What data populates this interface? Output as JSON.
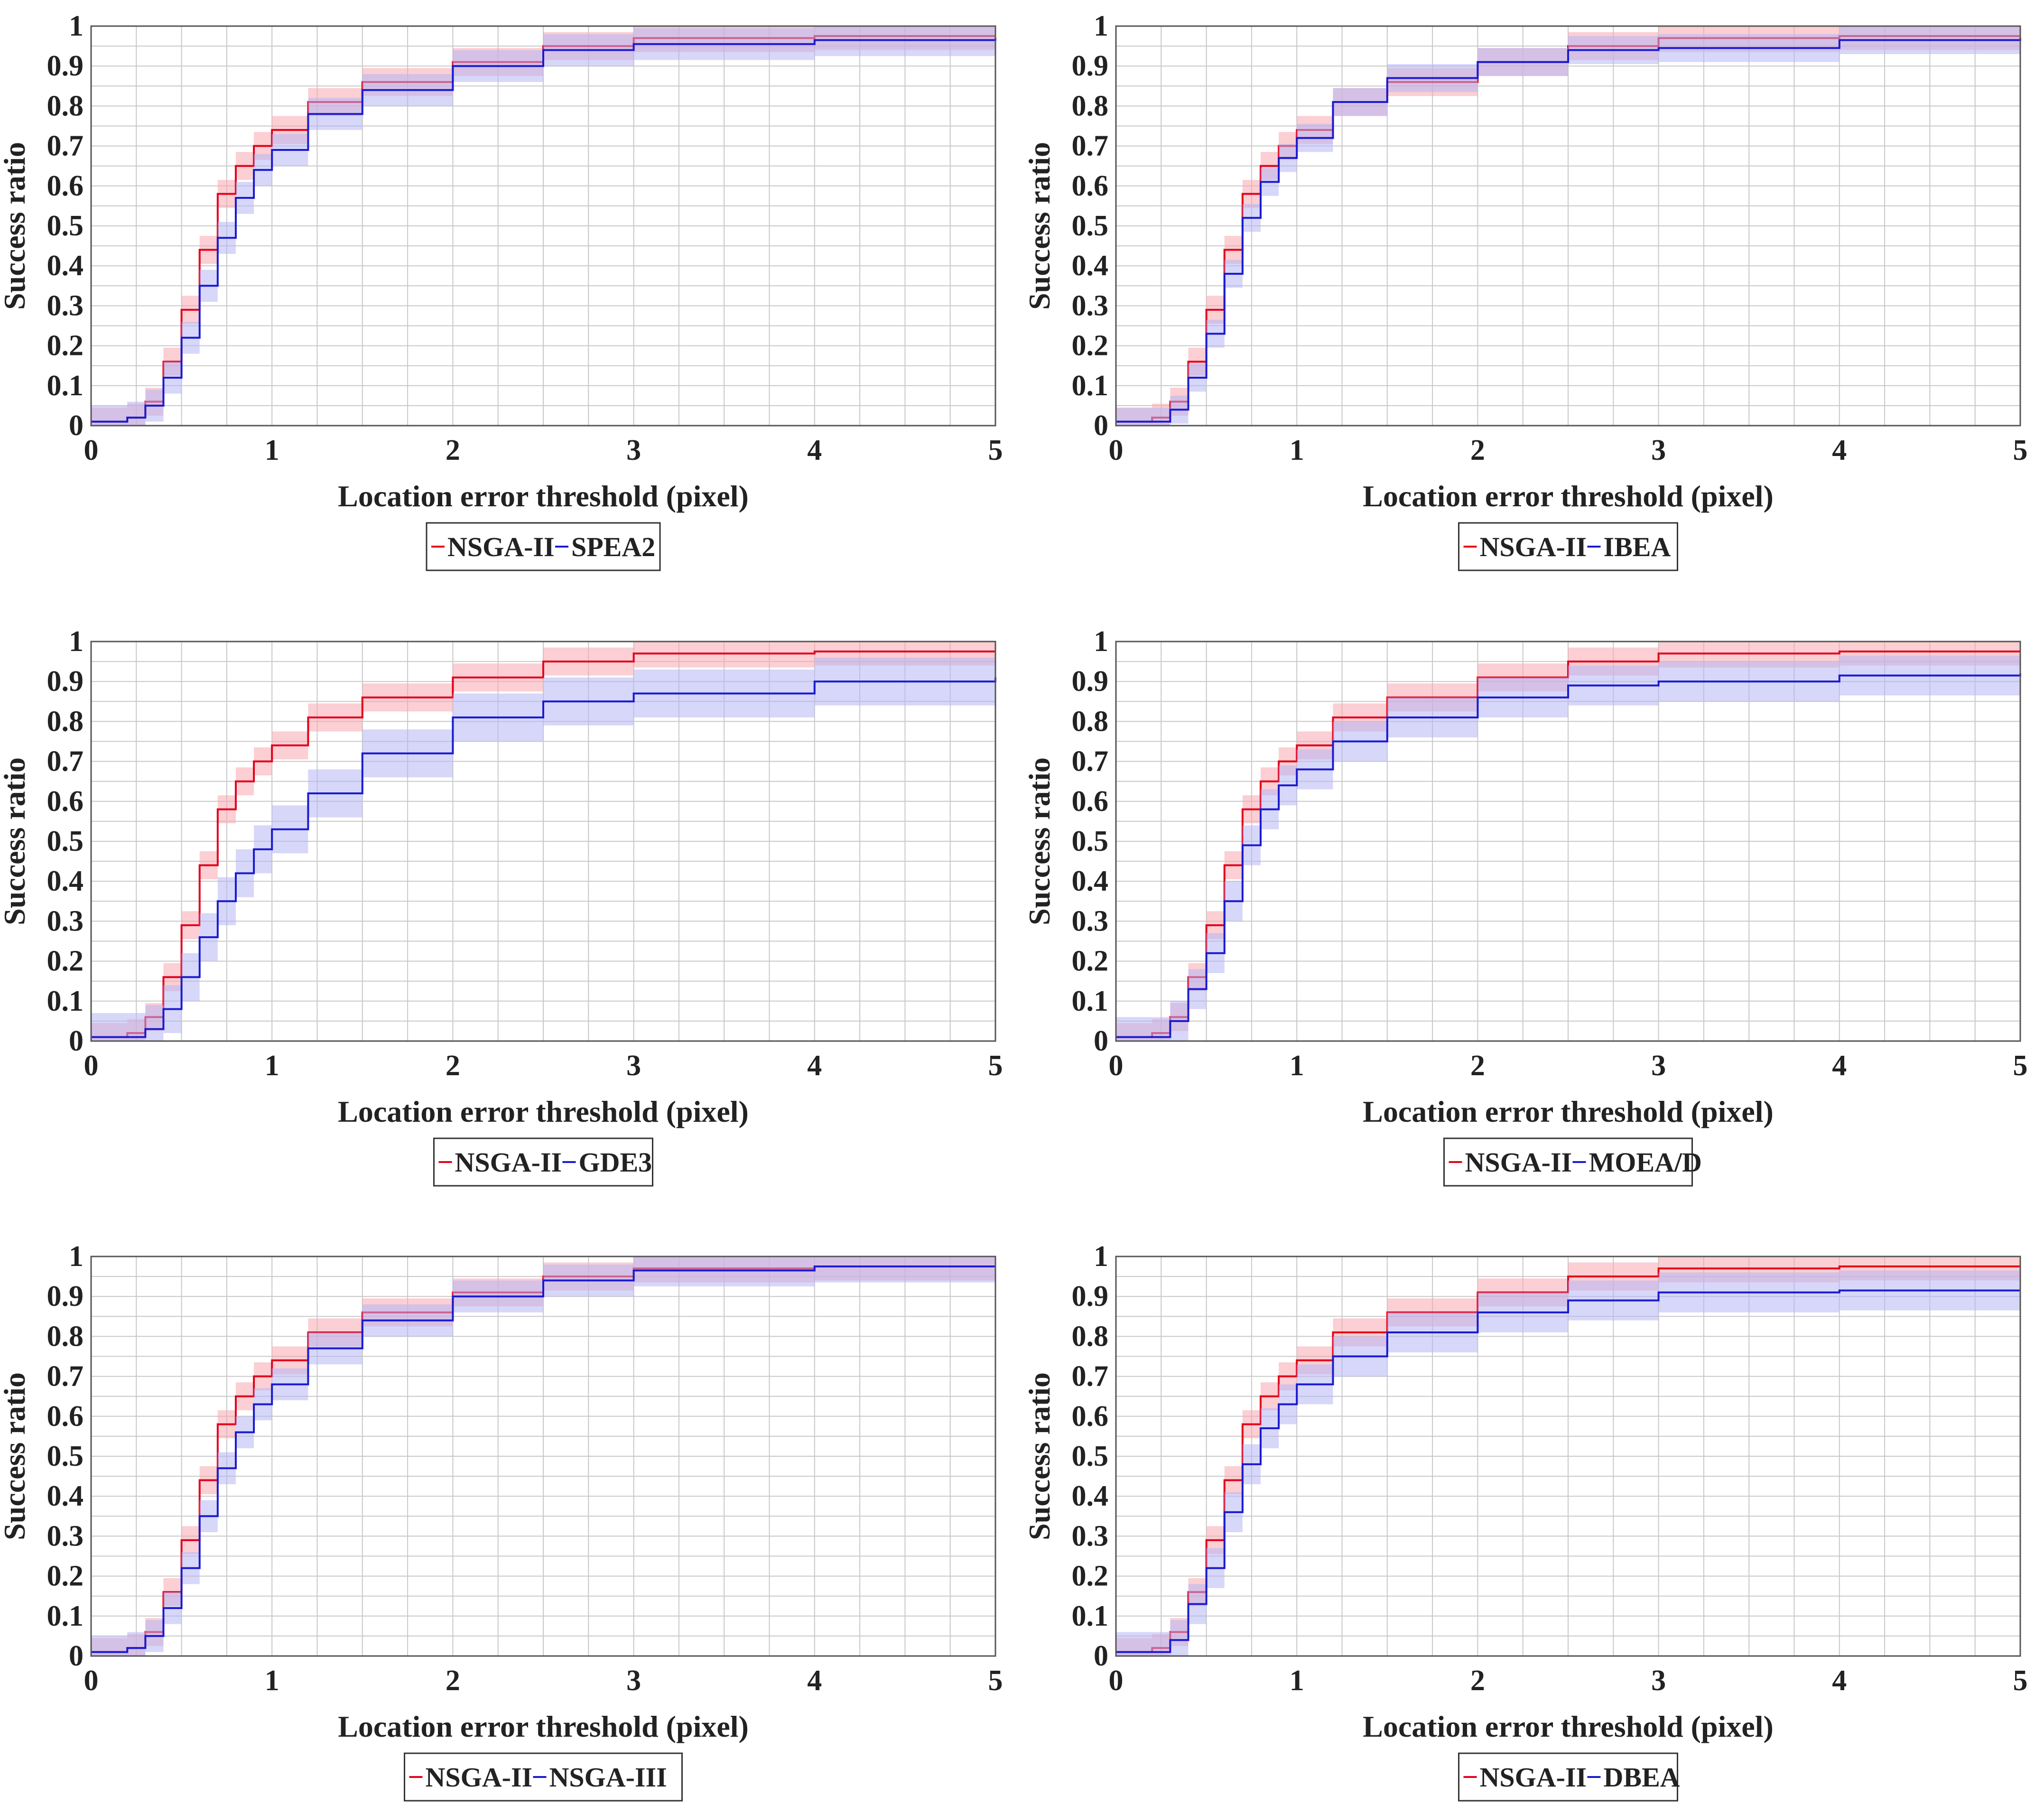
{
  "figure": {
    "colors": {
      "nsga2": "#e3001b",
      "other": "#1a1ad0",
      "nsga2_band": "#f7a8ae",
      "other_band": "#b6b6f5",
      "grid": "#c8c8c8",
      "axis": "#555555"
    }
  },
  "chart_data": [
    {
      "type": "line",
      "title": "",
      "xlabel": "Location error threshold (pixel)",
      "ylabel": "Success ratio",
      "xlim": [
        0,
        5
      ],
      "ylim": [
        0,
        1
      ],
      "xticks": [
        "0",
        "1",
        "2",
        "3",
        "4",
        "5"
      ],
      "yticks": [
        "0",
        "0.1",
        "0.2",
        "0.3",
        "0.4",
        "0.5",
        "0.6",
        "0.7",
        "0.8",
        "0.9",
        "1"
      ],
      "grid": true,
      "legend_position": "bottom-center",
      "x": [
        0,
        0.2,
        0.3,
        0.4,
        0.5,
        0.6,
        0.7,
        0.8,
        0.9,
        1.0,
        1.2,
        1.5,
        2.0,
        2.5,
        3.0,
        4.0,
        5.0
      ],
      "series": [
        {
          "name": "NSGA-II",
          "values": [
            0.01,
            0.02,
            0.06,
            0.16,
            0.29,
            0.44,
            0.58,
            0.65,
            0.7,
            0.74,
            0.81,
            0.86,
            0.91,
            0.95,
            0.97,
            0.975,
            0.975
          ],
          "band": 0.035
        },
        {
          "name": "SPEA2",
          "values": [
            0.01,
            0.02,
            0.05,
            0.12,
            0.22,
            0.35,
            0.47,
            0.57,
            0.64,
            0.69,
            0.78,
            0.84,
            0.9,
            0.94,
            0.955,
            0.965,
            0.97
          ],
          "band": 0.04
        }
      ]
    },
    {
      "type": "line",
      "title": "",
      "xlabel": "Location error threshold (pixel)",
      "ylabel": "Success ratio",
      "xlim": [
        0,
        5
      ],
      "ylim": [
        0,
        1
      ],
      "xticks": [
        "0",
        "1",
        "2",
        "3",
        "4",
        "5"
      ],
      "yticks": [
        "0",
        "0.1",
        "0.2",
        "0.3",
        "0.4",
        "0.5",
        "0.6",
        "0.7",
        "0.8",
        "0.9",
        "1"
      ],
      "grid": true,
      "legend_position": "bottom-center",
      "x": [
        0,
        0.2,
        0.3,
        0.4,
        0.5,
        0.6,
        0.7,
        0.8,
        0.9,
        1.0,
        1.2,
        1.5,
        2.0,
        2.5,
        3.0,
        4.0,
        5.0
      ],
      "series": [
        {
          "name": "NSGA-II",
          "values": [
            0.01,
            0.02,
            0.06,
            0.16,
            0.29,
            0.44,
            0.58,
            0.65,
            0.7,
            0.74,
            0.81,
            0.86,
            0.91,
            0.95,
            0.97,
            0.975,
            0.975
          ],
          "band": 0.035
        },
        {
          "name": "IBEA",
          "values": [
            0.01,
            0.01,
            0.04,
            0.12,
            0.23,
            0.38,
            0.52,
            0.61,
            0.67,
            0.72,
            0.81,
            0.87,
            0.91,
            0.94,
            0.945,
            0.965,
            0.97
          ],
          "band": 0.035
        }
      ]
    },
    {
      "type": "line",
      "title": "",
      "xlabel": "Location error threshold (pixel)",
      "ylabel": "Success ratio",
      "xlim": [
        0,
        5
      ],
      "ylim": [
        0,
        1
      ],
      "xticks": [
        "0",
        "1",
        "2",
        "3",
        "4",
        "5"
      ],
      "yticks": [
        "0",
        "0.1",
        "0.2",
        "0.3",
        "0.4",
        "0.5",
        "0.6",
        "0.7",
        "0.8",
        "0.9",
        "1"
      ],
      "grid": true,
      "legend_position": "bottom-center",
      "x": [
        0,
        0.2,
        0.3,
        0.4,
        0.5,
        0.6,
        0.7,
        0.8,
        0.9,
        1.0,
        1.2,
        1.5,
        2.0,
        2.5,
        3.0,
        4.0,
        5.0
      ],
      "series": [
        {
          "name": "NSGA-II",
          "values": [
            0.01,
            0.02,
            0.06,
            0.16,
            0.29,
            0.44,
            0.58,
            0.65,
            0.7,
            0.74,
            0.81,
            0.86,
            0.91,
            0.95,
            0.97,
            0.975,
            0.975
          ],
          "band": 0.035
        },
        {
          "name": "GDE3",
          "values": [
            0.01,
            0.01,
            0.03,
            0.08,
            0.16,
            0.26,
            0.35,
            0.42,
            0.48,
            0.53,
            0.62,
            0.72,
            0.81,
            0.85,
            0.87,
            0.9,
            0.91
          ],
          "band": 0.06
        }
      ]
    },
    {
      "type": "line",
      "title": "",
      "xlabel": "Location error threshold (pixel)",
      "ylabel": "Success ratio",
      "xlim": [
        0,
        5
      ],
      "ylim": [
        0,
        1
      ],
      "xticks": [
        "0",
        "1",
        "2",
        "3",
        "4",
        "5"
      ],
      "yticks": [
        "0",
        "0.1",
        "0.2",
        "0.3",
        "0.4",
        "0.5",
        "0.6",
        "0.7",
        "0.8",
        "0.9",
        "1"
      ],
      "grid": true,
      "legend_position": "bottom-center",
      "x": [
        0,
        0.2,
        0.3,
        0.4,
        0.5,
        0.6,
        0.7,
        0.8,
        0.9,
        1.0,
        1.2,
        1.5,
        2.0,
        2.5,
        3.0,
        4.0,
        5.0
      ],
      "series": [
        {
          "name": "NSGA-II",
          "values": [
            0.01,
            0.02,
            0.06,
            0.16,
            0.29,
            0.44,
            0.58,
            0.65,
            0.7,
            0.74,
            0.81,
            0.86,
            0.91,
            0.95,
            0.97,
            0.975,
            0.975
          ],
          "band": 0.035
        },
        {
          "name": "MOEA/D",
          "values": [
            0.01,
            0.01,
            0.05,
            0.13,
            0.22,
            0.35,
            0.49,
            0.58,
            0.64,
            0.68,
            0.75,
            0.81,
            0.86,
            0.89,
            0.9,
            0.915,
            0.92
          ],
          "band": 0.05
        }
      ]
    },
    {
      "type": "line",
      "title": "",
      "xlabel": "Location error threshold (pixel)",
      "ylabel": "Success ratio",
      "xlim": [
        0,
        5
      ],
      "ylim": [
        0,
        1
      ],
      "xticks": [
        "0",
        "1",
        "2",
        "3",
        "4",
        "5"
      ],
      "yticks": [
        "0",
        "0.1",
        "0.2",
        "0.3",
        "0.4",
        "0.5",
        "0.6",
        "0.7",
        "0.8",
        "0.9",
        "1"
      ],
      "grid": true,
      "legend_position": "bottom-center",
      "x": [
        0,
        0.2,
        0.3,
        0.4,
        0.5,
        0.6,
        0.7,
        0.8,
        0.9,
        1.0,
        1.2,
        1.5,
        2.0,
        2.5,
        3.0,
        4.0,
        5.0
      ],
      "series": [
        {
          "name": "NSGA-II",
          "values": [
            0.01,
            0.02,
            0.06,
            0.16,
            0.29,
            0.44,
            0.58,
            0.65,
            0.7,
            0.74,
            0.81,
            0.86,
            0.91,
            0.95,
            0.97,
            0.975,
            0.975
          ],
          "band": 0.035
        },
        {
          "name": "NSGA-III",
          "values": [
            0.01,
            0.02,
            0.05,
            0.12,
            0.22,
            0.35,
            0.47,
            0.56,
            0.63,
            0.68,
            0.77,
            0.84,
            0.9,
            0.94,
            0.965,
            0.975,
            0.975
          ],
          "band": 0.04
        }
      ]
    },
    {
      "type": "line",
      "title": "",
      "xlabel": "Location error threshold (pixel)",
      "ylabel": "Success ratio",
      "xlim": [
        0,
        5
      ],
      "ylim": [
        0,
        1
      ],
      "xticks": [
        "0",
        "1",
        "2",
        "3",
        "4",
        "5"
      ],
      "yticks": [
        "0",
        "0.1",
        "0.2",
        "0.3",
        "0.4",
        "0.5",
        "0.6",
        "0.7",
        "0.8",
        "0.9",
        "1"
      ],
      "grid": true,
      "legend_position": "bottom-center",
      "x": [
        0,
        0.2,
        0.3,
        0.4,
        0.5,
        0.6,
        0.7,
        0.8,
        0.9,
        1.0,
        1.2,
        1.5,
        2.0,
        2.5,
        3.0,
        4.0,
        5.0
      ],
      "series": [
        {
          "name": "NSGA-II",
          "values": [
            0.01,
            0.02,
            0.06,
            0.16,
            0.29,
            0.44,
            0.58,
            0.65,
            0.7,
            0.74,
            0.81,
            0.86,
            0.91,
            0.95,
            0.97,
            0.975,
            0.975
          ],
          "band": 0.035
        },
        {
          "name": "DBEA",
          "values": [
            0.01,
            0.01,
            0.04,
            0.13,
            0.22,
            0.36,
            0.48,
            0.57,
            0.63,
            0.68,
            0.75,
            0.81,
            0.86,
            0.89,
            0.91,
            0.915,
            0.915
          ],
          "band": 0.05
        }
      ]
    }
  ]
}
